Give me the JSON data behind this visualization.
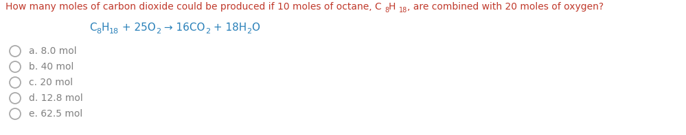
{
  "background_color": "#ffffff",
  "question_color": "#c0392b",
  "equation_color": "#2980b9",
  "options_color": "#808080",
  "fig_width": 9.99,
  "fig_height": 1.98,
  "dpi": 100,
  "question_parts": [
    {
      "text": "How many moles of carbon dioxide could be produced if 10 moles of octane, C ",
      "sub": false
    },
    {
      "text": "8",
      "sub": true
    },
    {
      "text": "H ",
      "sub": false
    },
    {
      "text": "18",
      "sub": true
    },
    {
      "text": ", are combined with 20 moles of oxygen?",
      "sub": false
    }
  ],
  "eq_parts": [
    {
      "text": "C",
      "sub": false
    },
    {
      "text": "8",
      "sub": true
    },
    {
      "text": "H",
      "sub": false
    },
    {
      "text": "18",
      "sub": true
    },
    {
      "text": " + 25O",
      "sub": false
    },
    {
      "text": "2",
      "sub": true
    },
    {
      "text": " → 16CO",
      "sub": false
    },
    {
      "text": "2",
      "sub": true
    },
    {
      "text": " + 18H",
      "sub": false
    },
    {
      "text": "2",
      "sub": true
    },
    {
      "text": "O",
      "sub": false
    }
  ],
  "options": [
    "a. 8.0 mol",
    "b. 40 mol",
    "c. 20 mol",
    "d. 12.8 mol",
    "e. 62.5 mol"
  ],
  "circle_color": "#aaaaaa"
}
